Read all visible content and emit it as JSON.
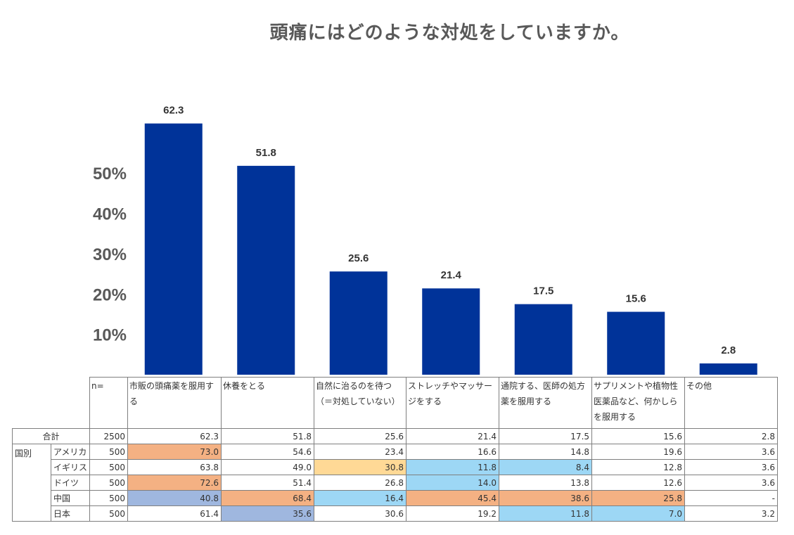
{
  "title": "頭痛にはどのような対処をしていますか。",
  "chart_data": {
    "type": "bar",
    "title": "頭痛にはどのような対処をしていますか。",
    "categories": [
      "市販の頭痛薬を服用する",
      "休養をとる",
      "自然に治るのを待つ（＝対処していない）",
      "ストレッチやマッサージをする",
      "通院する、医師の処方薬を服用する",
      "サプリメントや植物性医薬品など、何かしらを服用する",
      "その他"
    ],
    "values": [
      62.3,
      51.8,
      25.6,
      21.4,
      17.5,
      15.6,
      2.8
    ],
    "value_labels": [
      "62.3",
      "51.8",
      "25.6",
      "21.4",
      "17.5",
      "15.6",
      "2.8"
    ],
    "yticks": [
      "10%",
      "20%",
      "30%",
      "40%",
      "50%"
    ],
    "ytick_values": [
      10,
      20,
      30,
      40,
      50
    ],
    "ylim": [
      0,
      72
    ],
    "bar_color": "#003399"
  },
  "table": {
    "n_header": "n=",
    "headers": [
      "市販の頭痛薬を服用する",
      "休養をとる",
      "自然に治るのを待つ（＝対処していない）",
      "ストレッチやマッサージをする",
      "通院する、医師の処方薬を服用する",
      "サプリメントや植物性医薬品など、何かしらを服用する",
      "その他"
    ],
    "total_label": "合計",
    "group_label": "国別",
    "total_row": {
      "n": "2500",
      "values": [
        "62.3",
        "51.8",
        "25.6",
        "21.4",
        "17.5",
        "15.6",
        "2.8"
      ]
    },
    "rows": [
      {
        "label": "アメリカ",
        "n": "500",
        "values": [
          "73.0",
          "54.6",
          "23.4",
          "16.6",
          "14.8",
          "19.6",
          "3.6"
        ]
      },
      {
        "label": "イギリス",
        "n": "500",
        "values": [
          "63.8",
          "49.0",
          "30.8",
          "11.8",
          "8.4",
          "12.8",
          "3.6"
        ]
      },
      {
        "label": "ドイツ",
        "n": "500",
        "values": [
          "72.6",
          "51.4",
          "26.8",
          "14.0",
          "13.8",
          "12.6",
          "3.6"
        ]
      },
      {
        "label": "中国",
        "n": "500",
        "values": [
          "40.8",
          "68.4",
          "16.4",
          "45.4",
          "38.6",
          "25.8",
          "-"
        ]
      },
      {
        "label": "日本",
        "n": "500",
        "values": [
          "61.4",
          "35.6",
          "30.6",
          "19.2",
          "11.8",
          "7.0",
          "3.2"
        ]
      }
    ],
    "highlight_colors": {
      "high": "#f4b183",
      "mid": "#ffd996",
      "low_light": "#9dd7f5",
      "low_strong": "#9fb7df"
    },
    "highlights": [
      [
        "high",
        "",
        "",
        "",
        "",
        "",
        ""
      ],
      [
        "",
        "",
        "mid",
        "low_light",
        "low_light",
        "",
        ""
      ],
      [
        "high",
        "",
        "",
        "low_light",
        "",
        "",
        ""
      ],
      [
        "low_strong",
        "high",
        "low_light",
        "high",
        "high",
        "high",
        ""
      ],
      [
        "",
        "low_strong",
        "",
        "",
        "low_light",
        "low_light",
        ""
      ]
    ]
  }
}
